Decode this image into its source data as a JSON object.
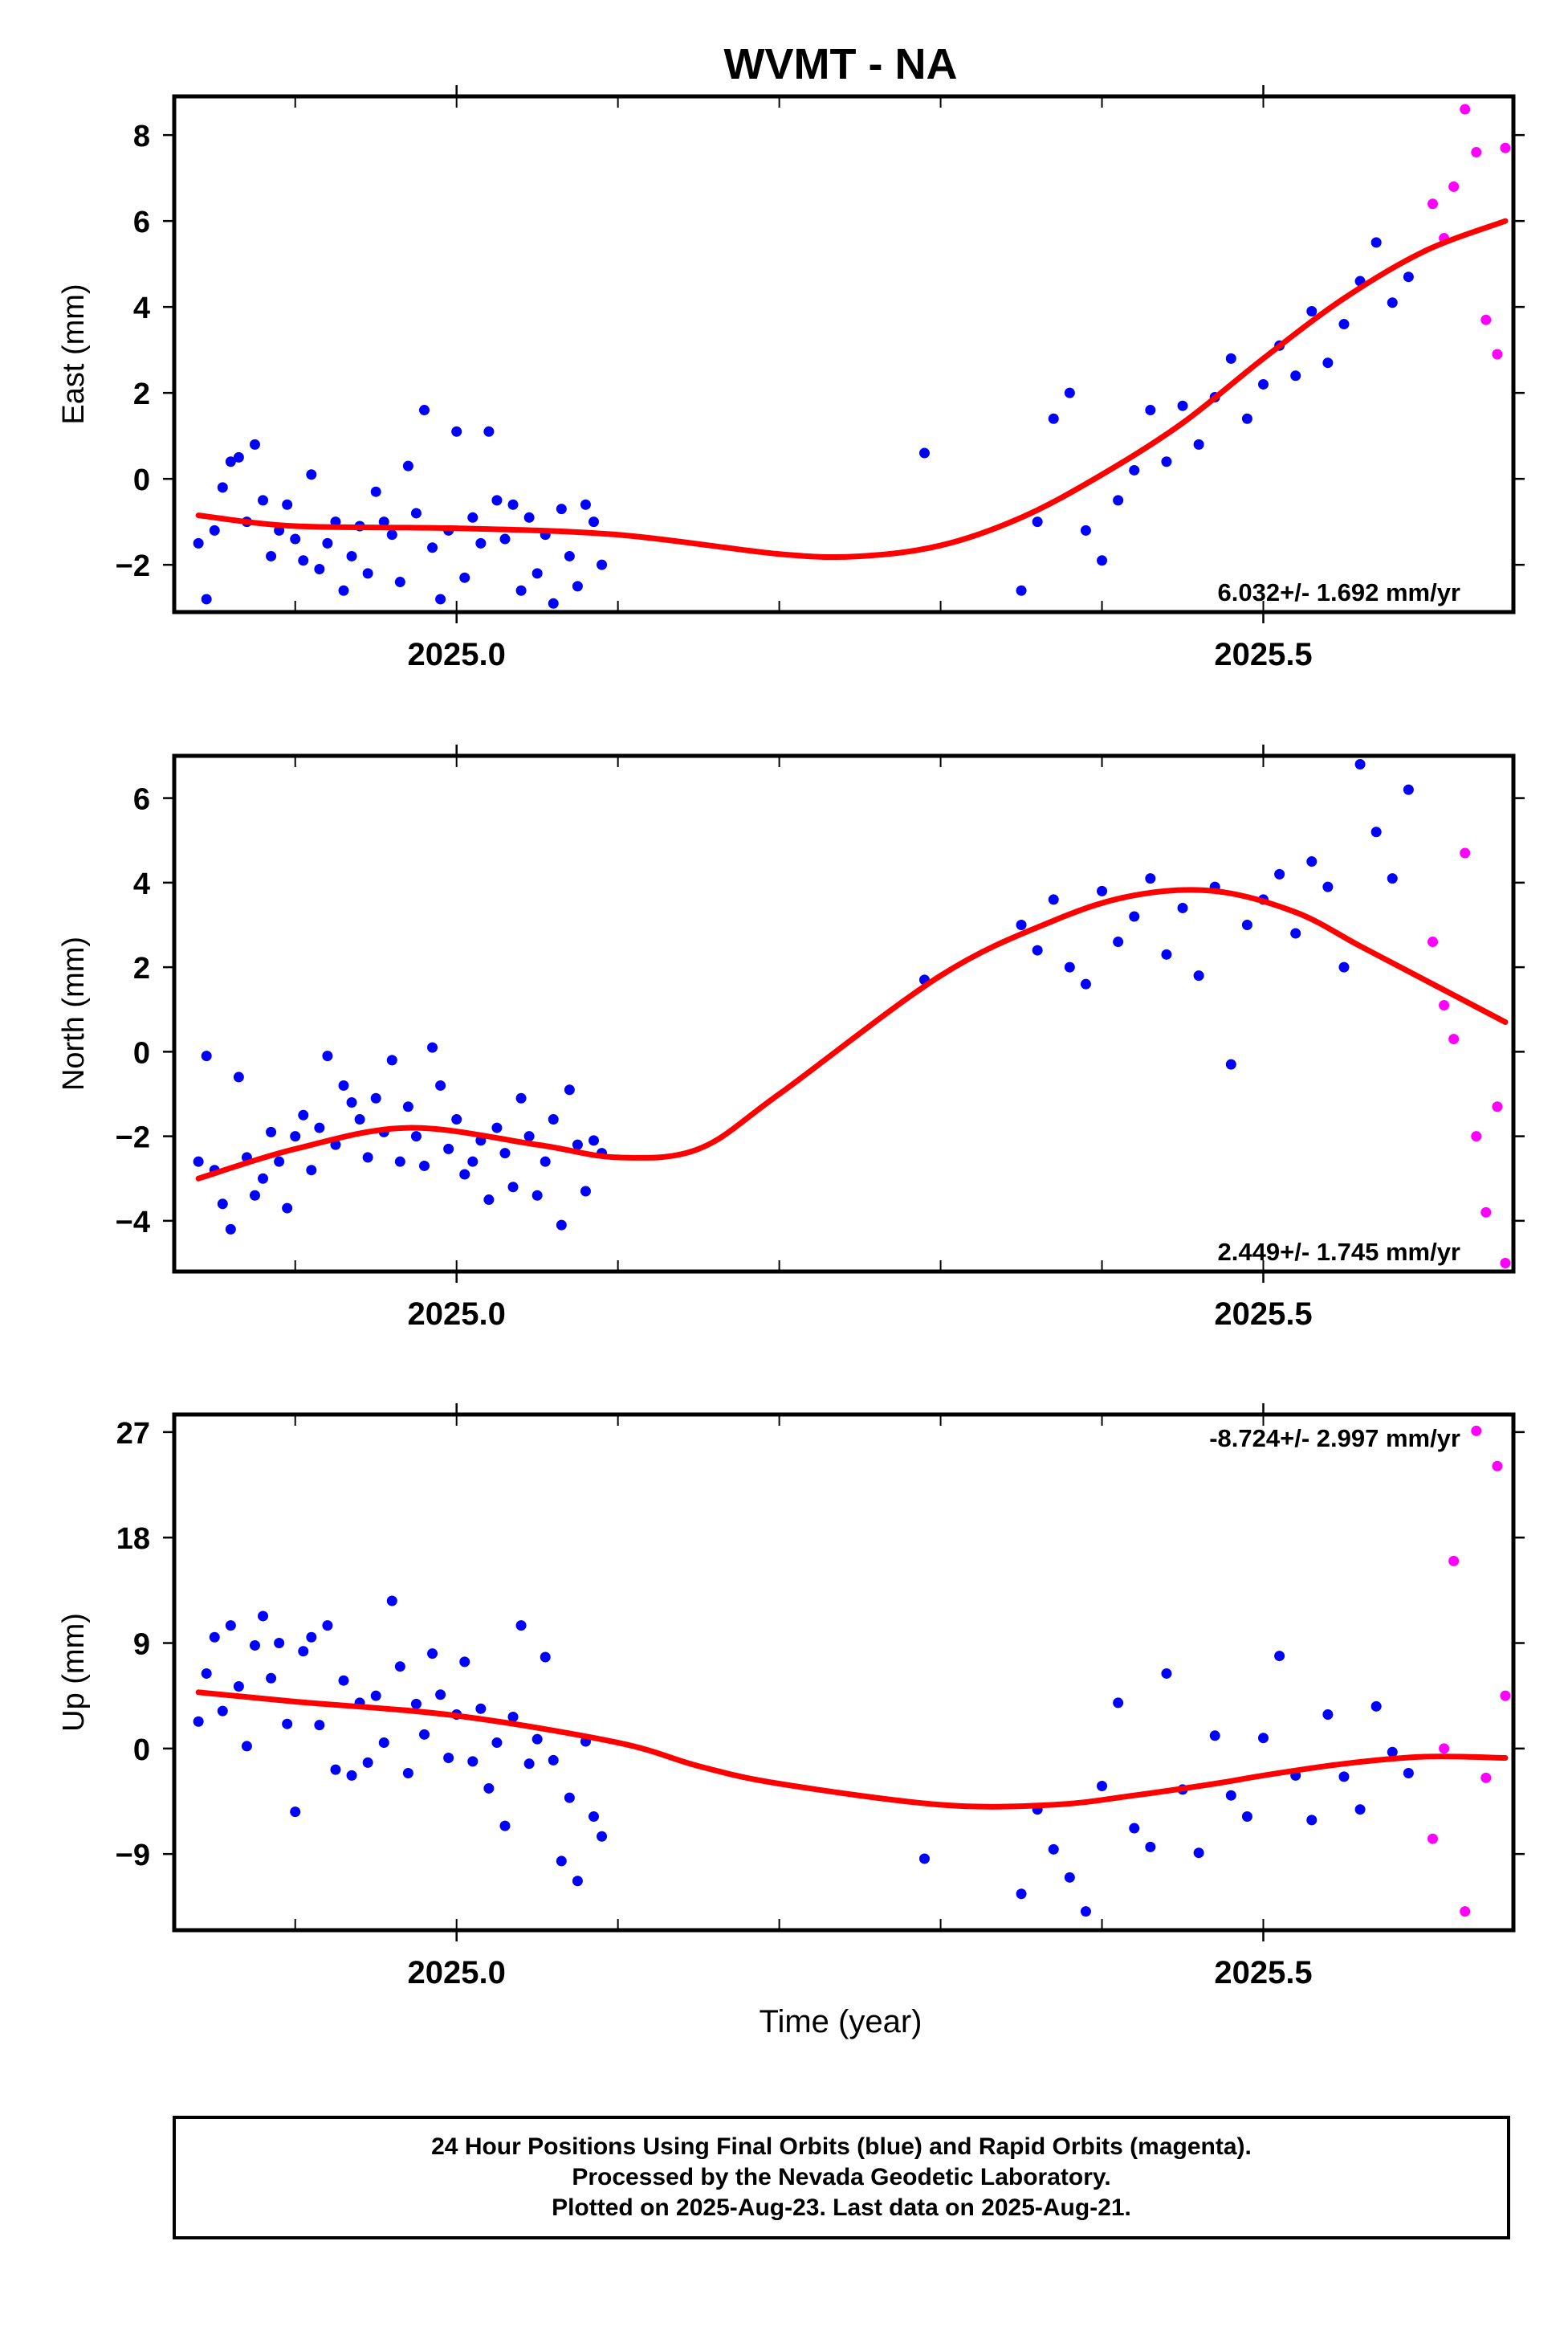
{
  "title": "WVMT - NA",
  "xlabel": "Time (year)",
  "colors": {
    "final": "#0000ff",
    "rapid": "#ff00ff",
    "fit": "#ff0000",
    "frame": "#000000"
  },
  "footer": {
    "line1": "24 Hour Positions Using Final Orbits (blue) and Rapid Orbits (magenta).",
    "line2": "Processed by the Nevada Geodetic Laboratory.",
    "line3": "Plotted on 2025-Aug-23. Last data on 2025-Aug-21."
  },
  "chart_data": [
    {
      "type": "scatter",
      "ylabel": "East (mm)",
      "rate": "6.032+/- 1.692 mm/yr",
      "xlim": [
        2024.825,
        2025.655
      ],
      "ylim": [
        -3.1,
        8.9
      ],
      "xticks": [
        "2025.0",
        "2025.5"
      ],
      "yticks": [
        -2,
        0,
        2,
        4,
        6,
        8
      ],
      "fit": {
        "x": [
          2024.84,
          2024.9,
          2025.0,
          2025.1,
          2025.2,
          2025.25,
          2025.3,
          2025.35,
          2025.4,
          2025.45,
          2025.5,
          2025.55,
          2025.6,
          2025.65
        ],
        "y": [
          -0.85,
          -1.1,
          -1.15,
          -1.3,
          -1.75,
          -1.8,
          -1.55,
          -0.9,
          0.1,
          1.3,
          2.8,
          4.2,
          5.3,
          6.0
        ]
      },
      "final": {
        "x": [
          2024.84,
          2024.845,
          2024.85,
          2024.855,
          2024.86,
          2024.865,
          2024.87,
          2024.875,
          2024.88,
          2024.885,
          2024.89,
          2024.895,
          2024.9,
          2024.905,
          2024.91,
          2024.915,
          2024.92,
          2024.925,
          2024.93,
          2024.935,
          2024.94,
          2024.945,
          2024.95,
          2024.955,
          2024.96,
          2024.965,
          2024.97,
          2024.975,
          2024.98,
          2024.985,
          2024.99,
          2024.995,
          2025.0,
          2025.005,
          2025.01,
          2025.015,
          2025.02,
          2025.025,
          2025.03,
          2025.035,
          2025.04,
          2025.045,
          2025.05,
          2025.055,
          2025.06,
          2025.065,
          2025.07,
          2025.075,
          2025.08,
          2025.085,
          2025.09,
          2025.29,
          2025.35,
          2025.36,
          2025.37,
          2025.38,
          2025.39,
          2025.4,
          2025.41,
          2025.42,
          2025.43,
          2025.44,
          2025.45,
          2025.46,
          2025.47,
          2025.48,
          2025.49,
          2025.5,
          2025.51,
          2025.52,
          2025.53,
          2025.54,
          2025.55,
          2025.56,
          2025.57,
          2025.58,
          2025.59
        ],
        "y": [
          -1.5,
          -2.8,
          -1.2,
          -0.2,
          0.4,
          0.5,
          -1.0,
          0.8,
          -0.5,
          -1.8,
          -1.2,
          -0.6,
          -1.4,
          -1.9,
          0.1,
          -2.1,
          -1.5,
          -1.0,
          -2.6,
          -1.8,
          -1.1,
          -2.2,
          -0.3,
          -1.0,
          -1.3,
          -2.4,
          0.3,
          -0.8,
          1.6,
          -1.6,
          -2.8,
          -1.2,
          1.1,
          -2.3,
          -0.9,
          -1.5,
          1.1,
          -0.5,
          -1.4,
          -0.6,
          -2.6,
          -0.9,
          -2.2,
          -1.3,
          -2.9,
          -0.7,
          -1.8,
          -2.5,
          -0.6,
          -1.0,
          -2.0,
          0.6,
          -2.6,
          -1.0,
          1.4,
          2.0,
          -1.2,
          -1.9,
          -0.5,
          0.2,
          1.6,
          0.4,
          1.7,
          0.8,
          1.9,
          2.8,
          1.4,
          2.2,
          3.1,
          2.4,
          3.9,
          2.7,
          3.6,
          4.6,
          5.5,
          4.1,
          4.7
        ],
        "labeled": false
      },
      "rapid": {
        "x": [
          2025.605,
          2025.612,
          2025.618,
          2025.625,
          2025.632,
          2025.638,
          2025.645,
          2025.65
        ],
        "y": [
          6.4,
          5.6,
          6.8,
          8.6,
          7.6,
          3.7,
          2.9,
          7.7
        ]
      }
    },
    {
      "type": "scatter",
      "ylabel": "North (mm)",
      "rate": "2.449+/- 1.745 mm/yr",
      "xlim": [
        2024.825,
        2025.655
      ],
      "ylim": [
        -5.2,
        7.0
      ],
      "xticks": [
        "2025.0",
        "2025.5"
      ],
      "yticks": [
        -4,
        -2,
        0,
        2,
        4,
        6
      ],
      "fit": {
        "x": [
          2024.84,
          2024.9,
          2024.97,
          2025.05,
          2025.1,
          2025.15,
          2025.2,
          2025.3,
          2025.37,
          2025.42,
          2025.47,
          2025.52,
          2025.56,
          2025.6,
          2025.65
        ],
        "y": [
          -3.0,
          -2.3,
          -1.8,
          -2.2,
          -2.5,
          -2.3,
          -1.0,
          1.8,
          3.1,
          3.7,
          3.8,
          3.3,
          2.5,
          1.7,
          0.7
        ]
      },
      "final": {
        "x": [
          2024.84,
          2024.845,
          2024.85,
          2024.855,
          2024.86,
          2024.865,
          2024.87,
          2024.875,
          2024.88,
          2024.885,
          2024.89,
          2024.895,
          2024.9,
          2024.905,
          2024.91,
          2024.915,
          2024.92,
          2024.925,
          2024.93,
          2024.935,
          2024.94,
          2024.945,
          2024.95,
          2024.955,
          2024.96,
          2024.965,
          2024.97,
          2024.975,
          2024.98,
          2024.985,
          2024.99,
          2024.995,
          2025.0,
          2025.005,
          2025.01,
          2025.015,
          2025.02,
          2025.025,
          2025.03,
          2025.035,
          2025.04,
          2025.045,
          2025.05,
          2025.055,
          2025.06,
          2025.065,
          2025.07,
          2025.075,
          2025.08,
          2025.085,
          2025.09,
          2025.29,
          2025.35,
          2025.36,
          2025.37,
          2025.38,
          2025.39,
          2025.4,
          2025.41,
          2025.42,
          2025.43,
          2025.44,
          2025.45,
          2025.46,
          2025.47,
          2025.48,
          2025.49,
          2025.5,
          2025.51,
          2025.52,
          2025.53,
          2025.54,
          2025.55,
          2025.56,
          2025.57,
          2025.58,
          2025.59
        ],
        "y": [
          -2.6,
          -0.1,
          -2.8,
          -3.6,
          -4.2,
          -0.6,
          -2.5,
          -3.4,
          -3.0,
          -1.9,
          -2.6,
          -3.7,
          -2.0,
          -1.5,
          -2.8,
          -1.8,
          -0.1,
          -2.2,
          -0.8,
          -1.2,
          -1.6,
          -2.5,
          -1.1,
          -1.9,
          -0.2,
          -2.6,
          -1.3,
          -2.0,
          -2.7,
          0.1,
          -0.8,
          -2.3,
          -1.6,
          -2.9,
          -2.6,
          -2.1,
          -3.5,
          -1.8,
          -2.4,
          -3.2,
          -1.1,
          -2.0,
          -3.4,
          -2.6,
          -1.6,
          -4.1,
          -0.9,
          -2.2,
          -3.3,
          -2.1,
          -2.4,
          1.7,
          3.0,
          2.4,
          3.6,
          2.0,
          1.6,
          3.8,
          2.6,
          3.2,
          4.1,
          2.3,
          3.4,
          1.8,
          3.9,
          -0.3,
          3.0,
          3.6,
          4.2,
          2.8,
          4.5,
          3.9,
          2.0,
          6.8,
          5.2,
          4.1,
          6.2
        ],
        "labeled": false
      },
      "rapid": {
        "x": [
          2025.605,
          2025.612,
          2025.618,
          2025.625,
          2025.632,
          2025.638,
          2025.645,
          2025.65
        ],
        "y": [
          2.6,
          1.1,
          0.3,
          4.7,
          -2.0,
          -3.8,
          -1.3,
          -5.0
        ]
      }
    },
    {
      "type": "scatter",
      "ylabel": "Up (mm)",
      "rate": "-8.724+/- 2.997 mm/yr",
      "xlim": [
        2024.825,
        2025.655
      ],
      "ylim": [
        -15.5,
        28.5
      ],
      "xticks": [
        "2025.0",
        "2025.5"
      ],
      "yticks": [
        -9,
        0,
        9,
        18,
        27
      ],
      "fit": {
        "x": [
          2024.84,
          2024.9,
          2025.0,
          2025.1,
          2025.15,
          2025.2,
          2025.3,
          2025.37,
          2025.42,
          2025.47,
          2025.5,
          2025.55,
          2025.6,
          2025.65
        ],
        "y": [
          4.8,
          4.0,
          2.8,
          0.5,
          -1.5,
          -3.0,
          -4.8,
          -4.8,
          -4.0,
          -3.0,
          -2.3,
          -1.3,
          -0.7,
          -0.8
        ]
      },
      "final": {
        "x": [
          2024.84,
          2024.845,
          2024.85,
          2024.855,
          2024.86,
          2024.865,
          2024.87,
          2024.875,
          2024.88,
          2024.885,
          2024.89,
          2024.895,
          2024.9,
          2024.905,
          2024.91,
          2024.915,
          2024.92,
          2024.925,
          2024.93,
          2024.935,
          2024.94,
          2024.945,
          2024.95,
          2024.955,
          2024.96,
          2024.965,
          2024.97,
          2024.975,
          2024.98,
          2024.985,
          2024.99,
          2024.995,
          2025.0,
          2025.005,
          2025.01,
          2025.015,
          2025.02,
          2025.025,
          2025.03,
          2025.035,
          2025.04,
          2025.045,
          2025.05,
          2025.055,
          2025.06,
          2025.065,
          2025.07,
          2025.075,
          2025.08,
          2025.085,
          2025.09,
          2025.29,
          2025.35,
          2025.36,
          2025.37,
          2025.38,
          2025.39,
          2025.4,
          2025.41,
          2025.42,
          2025.43,
          2025.44,
          2025.45,
          2025.46,
          2025.47,
          2025.48,
          2025.49,
          2025.5,
          2025.51,
          2025.52,
          2025.53,
          2025.54,
          2025.55,
          2025.56,
          2025.57,
          2025.58,
          2025.59
        ],
        "y": [
          2.3,
          6.4,
          9.5,
          3.2,
          10.5,
          5.3,
          0.2,
          8.8,
          11.3,
          6.0,
          9.0,
          2.1,
          -5.4,
          8.3,
          9.5,
          2.0,
          10.5,
          -1.8,
          5.8,
          -2.3,
          3.9,
          -1.2,
          4.5,
          0.5,
          12.6,
          7.0,
          -2.1,
          3.8,
          1.2,
          8.1,
          4.6,
          -0.8,
          2.9,
          7.4,
          -1.1,
          3.4,
          -3.4,
          0.5,
          -6.6,
          2.7,
          10.5,
          -1.3,
          0.8,
          7.8,
          -1.0,
          -9.6,
          -4.2,
          -11.3,
          0.6,
          -5.8,
          -7.5,
          -9.4,
          -12.4,
          -5.2,
          -8.6,
          -11.0,
          -13.9,
          -3.2,
          3.9,
          -6.8,
          -8.4,
          6.4,
          -3.5,
          -8.9,
          1.1,
          -4.0,
          -5.8,
          0.9,
          7.9,
          -2.3,
          -6.1,
          2.9,
          -2.4,
          -5.2,
          3.6,
          -0.3,
          -2.1
        ],
        "labeled": false
      },
      "rapid": {
        "x": [
          2025.605,
          2025.612,
          2025.618,
          2025.625,
          2025.632,
          2025.638,
          2025.645,
          2025.65
        ],
        "y": [
          -7.7,
          0.0,
          16.0,
          -13.9,
          27.1,
          -2.5,
          24.1,
          4.5
        ]
      }
    }
  ]
}
